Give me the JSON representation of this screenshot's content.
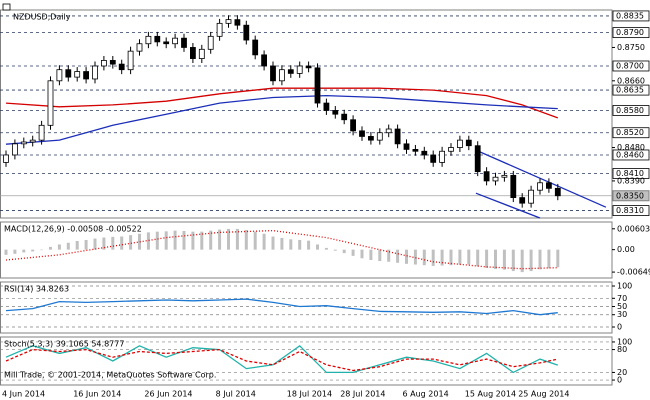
{
  "chart_data": [
    {
      "type": "candlestick",
      "title": "NZDUSD,Daily",
      "categories": [
        "4 Jun 2014",
        null,
        null,
        null,
        null,
        null,
        null,
        null,
        "16 Jun 2014",
        null,
        null,
        null,
        null,
        null,
        null,
        null,
        "26 Jun 2014",
        null,
        null,
        null,
        null,
        null,
        null,
        null,
        "8 Jul 2014",
        null,
        null,
        null,
        null,
        null,
        null,
        null,
        "18 Jul 2014",
        null,
        null,
        null,
        null,
        null,
        "28 Jul 2014",
        null,
        null,
        null,
        null,
        null,
        null,
        "6 Aug 2014",
        null,
        null,
        null,
        null,
        null,
        null,
        "15 Aug 2014",
        null,
        null,
        null,
        null,
        null,
        "25 Aug 2014",
        null,
        null,
        null,
        null
      ],
      "open": [
        0.844,
        0.846,
        0.849,
        0.8495,
        0.85,
        0.854,
        0.866,
        0.869,
        0.867,
        0.8685,
        0.8665,
        0.87,
        0.8715,
        0.8705,
        0.869,
        0.874,
        0.876,
        0.878,
        0.8765,
        0.876,
        0.8775,
        0.875,
        0.872,
        0.8745,
        0.878,
        0.8815,
        0.8825,
        0.881,
        0.877,
        0.873,
        0.87,
        0.866,
        0.869,
        0.868,
        0.87,
        0.8695,
        0.86,
        0.858,
        0.857,
        0.8555,
        0.8525,
        0.851,
        0.85,
        0.852,
        0.853,
        0.849,
        0.8475,
        0.847,
        0.846,
        0.844,
        0.847,
        0.848,
        0.85,
        0.8485,
        0.8415,
        0.839,
        0.84,
        0.8405,
        0.8345,
        0.833,
        0.8365,
        0.8385,
        0.837
      ],
      "high": [
        0.8472,
        0.8502,
        0.8507,
        0.8512,
        0.8552,
        0.8672,
        0.8702,
        0.8702,
        0.8697,
        0.8697,
        0.8712,
        0.8727,
        0.8727,
        0.8717,
        0.8752,
        0.8772,
        0.8792,
        0.8792,
        0.8777,
        0.8787,
        0.8787,
        0.8762,
        0.8757,
        0.8792,
        0.8827,
        0.8837,
        0.8837,
        0.8822,
        0.8782,
        0.8742,
        0.8712,
        0.8702,
        0.8702,
        0.8712,
        0.8712,
        0.8707,
        0.8612,
        0.8592,
        0.8582,
        0.8567,
        0.8537,
        0.8522,
        0.8532,
        0.8542,
        0.8542,
        0.8502,
        0.8487,
        0.8482,
        0.8472,
        0.8482,
        0.8492,
        0.8512,
        0.8512,
        0.8497,
        0.8427,
        0.8412,
        0.8417,
        0.8417,
        0.8357,
        0.8377,
        0.8397,
        0.8397,
        0.8382
      ],
      "low": [
        0.8428,
        0.8448,
        0.8478,
        0.8483,
        0.8488,
        0.8528,
        0.8648,
        0.8658,
        0.8658,
        0.8653,
        0.8653,
        0.8688,
        0.8693,
        0.8678,
        0.8678,
        0.8728,
        0.8748,
        0.8753,
        0.8748,
        0.8748,
        0.8738,
        0.8708,
        0.8708,
        0.8733,
        0.8768,
        0.8803,
        0.8798,
        0.8758,
        0.8718,
        0.8688,
        0.8648,
        0.8648,
        0.8668,
        0.8668,
        0.8683,
        0.8588,
        0.8568,
        0.8558,
        0.8543,
        0.8513,
        0.8498,
        0.8488,
        0.8488,
        0.8508,
        0.8478,
        0.8463,
        0.8458,
        0.8448,
        0.8428,
        0.8428,
        0.8458,
        0.8468,
        0.8473,
        0.8403,
        0.8378,
        0.8378,
        0.8388,
        0.8333,
        0.8318,
        0.8318,
        0.8353,
        0.8358,
        0.8338
      ],
      "close": [
        0.846,
        0.849,
        0.8495,
        0.85,
        0.854,
        0.866,
        0.869,
        0.867,
        0.8685,
        0.8665,
        0.87,
        0.8715,
        0.8705,
        0.869,
        0.874,
        0.876,
        0.878,
        0.8765,
        0.876,
        0.8775,
        0.875,
        0.872,
        0.8745,
        0.878,
        0.8815,
        0.8825,
        0.881,
        0.877,
        0.873,
        0.87,
        0.866,
        0.869,
        0.868,
        0.87,
        0.8695,
        0.86,
        0.858,
        0.857,
        0.8555,
        0.8525,
        0.851,
        0.85,
        0.852,
        0.853,
        0.849,
        0.8475,
        0.847,
        0.846,
        0.844,
        0.847,
        0.848,
        0.85,
        0.8485,
        0.8415,
        0.839,
        0.84,
        0.8405,
        0.8345,
        0.833,
        0.8365,
        0.8385,
        0.837,
        0.835
      ],
      "series": [
        {
          "color": "#d40000",
          "x": [
            0,
            6,
            12,
            18,
            24,
            30,
            36,
            42,
            48,
            54,
            58,
            62
          ],
          "values": [
            0.86,
            0.859,
            0.8595,
            0.8605,
            0.8625,
            0.864,
            0.864,
            0.864,
            0.8635,
            0.862,
            0.8595,
            0.856
          ]
        },
        {
          "color": "#1c2fb8",
          "x": [
            0,
            6,
            12,
            18,
            24,
            30,
            36,
            42,
            48,
            54,
            58,
            62
          ],
          "values": [
            0.8489,
            0.85,
            0.854,
            0.857,
            0.86,
            0.8615,
            0.862,
            0.8615,
            0.8605,
            0.8595,
            0.859,
            0.8585
          ]
        }
      ],
      "trendlines": [
        {
          "color": "#1c2fb8",
          "x": [
            52.8,
            67.4
          ],
          "values": [
            0.8473,
            0.8319
          ]
        },
        {
          "color": "#1c2fb8",
          "x": [
            52.8,
            60
          ],
          "values": [
            0.8357,
            0.829
          ]
        }
      ],
      "levels": [
        0.8835,
        {
          "value": 0.879,
          "label": "0.8790"
        },
        {
          "value": 0.87,
          "label": "0.8700"
        },
        0.8635,
        {
          "value": 0.858,
          "label": "0.8580"
        },
        {
          "value": 0.852,
          "label": "0.8520"
        },
        {
          "value": 0.846,
          "label": "0.8460"
        },
        {
          "value": 0.841,
          "label": "0.8410"
        },
        {
          "value": 0.831,
          "label": "0.8310"
        }
      ],
      "yticks": [
        {
          "value": 0.875,
          "label": "0.8750"
        },
        {
          "value": 0.866,
          "label": "0.8660"
        },
        {
          "value": 0.848,
          "label": "0.8480"
        },
        {
          "value": 0.839,
          "label": "0.8390"
        }
      ],
      "last_price": {
        "value": 0.835,
        "label": "0.8350"
      },
      "ylim": [
        0.829,
        0.8851
      ]
    },
    {
      "type": "macd",
      "title": "MACD(12,26,9) -0.00508 -0.00522",
      "color": "#c0c0c0",
      "values": [
        -0.0015,
        -0.0012,
        -0.0008,
        -0.0005,
        0.0,
        0.0008,
        0.0015,
        0.002,
        0.0025,
        0.0028,
        0.0032,
        0.0035,
        0.0037,
        0.0038,
        0.0042,
        0.0046,
        0.005,
        0.0052,
        0.0053,
        0.0055,
        0.0054,
        0.0052,
        0.0052,
        0.0055,
        0.0058,
        0.006,
        0.006,
        0.0057,
        0.0052,
        0.0046,
        0.0038,
        0.0034,
        0.003,
        0.0028,
        0.0026,
        0.0015,
        0.0005,
        -0.0003,
        -0.001,
        -0.0018,
        -0.0025,
        -0.003,
        -0.0033,
        -0.0035,
        -0.0038,
        -0.0041,
        -0.0043,
        -0.0045,
        -0.0047,
        -0.0046,
        -0.0045,
        -0.0043,
        -0.0043,
        -0.0048,
        -0.0053,
        -0.0056,
        -0.0058,
        -0.0062,
        -0.0065,
        -0.0062,
        -0.0057,
        -0.0054,
        -0.00508
      ],
      "series": [
        {
          "color": "#e00000",
          "style": "dotted",
          "x": [
            0,
            6,
            12,
            18,
            24,
            30,
            36,
            42,
            48,
            54,
            58,
            62
          ],
          "values": [
            -0.003,
            -0.0015,
            0.001,
            0.0035,
            0.005,
            0.0055,
            0.0035,
            0.0,
            -0.0035,
            -0.005,
            -0.0055,
            -0.00522
          ]
        }
      ],
      "yticks": [
        0.00603,
        {
          "value": 0,
          "label": "0.00"
        },
        -0.00649
      ],
      "ylim": [
        -0.0082,
        0.008
      ],
      "grid": false
    },
    {
      "type": "oscillator",
      "title": "RSI(14) 34.8263",
      "series": [
        {
          "color": "#1e78d2",
          "style": "solid",
          "x": [
            0,
            3,
            6,
            9,
            12,
            15,
            18,
            21,
            24,
            27,
            30,
            33,
            36,
            39,
            42,
            45,
            48,
            51,
            54,
            57,
            60,
            62
          ],
          "values": [
            40,
            45,
            62,
            60,
            62,
            64,
            66,
            64,
            66,
            68,
            60,
            50,
            52,
            45,
            38,
            37,
            36,
            37,
            33,
            40,
            30,
            34.8263
          ]
        }
      ],
      "yticks": [
        100,
        70,
        50,
        30,
        0
      ],
      "ylim": [
        -14.6,
        109.8
      ],
      "grid": true
    },
    {
      "type": "oscillator",
      "title": "Stoch(5,3,3) 39.1065 54.8777",
      "series": [
        {
          "color": "#20b2aa",
          "style": "solid",
          "x": [
            0,
            3,
            6,
            9,
            12,
            15,
            18,
            21,
            24,
            27,
            30,
            33,
            36,
            39,
            42,
            45,
            48,
            51,
            54,
            57,
            60,
            62
          ],
          "values": [
            60,
            90,
            70,
            85,
            50,
            90,
            60,
            85,
            80,
            30,
            40,
            90,
            20,
            20,
            40,
            60,
            50,
            30,
            70,
            20,
            55,
            39.1065
          ]
        },
        {
          "color": "#e00000",
          "style": "dashed",
          "x": [
            0,
            3,
            6,
            9,
            12,
            15,
            18,
            21,
            24,
            27,
            30,
            33,
            36,
            39,
            42,
            45,
            48,
            51,
            54,
            57,
            60,
            62
          ],
          "values": [
            50,
            80,
            75,
            80,
            60,
            75,
            70,
            75,
            80,
            50,
            40,
            75,
            40,
            25,
            35,
            55,
            55,
            40,
            55,
            35,
            45,
            54.8777
          ]
        }
      ],
      "yticks": [
        100,
        80,
        20,
        0
      ],
      "ylim": [
        -13,
        113
      ],
      "grid": true
    }
  ],
  "footer": "Mill Trade, © 2001-2014, MetaQuotes Software Corp."
}
